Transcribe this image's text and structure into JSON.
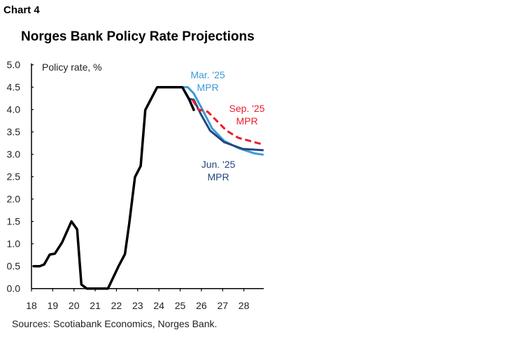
{
  "header": {
    "chart_label": "Chart 4"
  },
  "footer": {
    "sources": "Sources: Scotiabank Economics, Norges Bank."
  },
  "chart_data": {
    "type": "line",
    "title": "Norges Bank Policy Rate Projections",
    "ylabel": "Policy rate, %",
    "xlabel": "",
    "xlim": [
      18,
      29
    ],
    "ylim": [
      0,
      5
    ],
    "x_ticks": [
      18,
      19,
      20,
      21,
      22,
      23,
      24,
      25,
      26,
      27,
      28
    ],
    "y_ticks": [
      "0.0",
      "0.5",
      "1.0",
      "1.5",
      "2.0",
      "2.5",
      "3.0",
      "3.5",
      "4.0",
      "4.5",
      "5.0"
    ],
    "grid": false,
    "legend": "inline labels",
    "series": [
      {
        "name": "",
        "color": "#000000",
        "dash": false,
        "x": [
          18.07,
          18.4,
          18.6,
          18.86,
          19.1,
          19.44,
          19.88,
          20.15,
          20.35,
          20.6,
          21.6,
          22.1,
          22.4,
          22.6,
          22.87,
          23.14,
          23.36,
          23.92,
          25.1,
          25.42,
          25.66
        ],
        "y": [
          0.5,
          0.5,
          0.54,
          0.76,
          0.78,
          1.03,
          1.5,
          1.32,
          0.09,
          0.0,
          0.0,
          0.5,
          0.77,
          1.45,
          2.49,
          2.74,
          3.99,
          4.5,
          4.5,
          4.23,
          3.97
        ]
      },
      {
        "name": "Mar. '25 MPR",
        "color": "#3a9ad9",
        "dash": false,
        "x": [
          25.1,
          25.36,
          25.64,
          26.08,
          26.5,
          27.07,
          27.73,
          28.5,
          28.93
        ],
        "y": [
          4.5,
          4.5,
          4.36,
          3.97,
          3.58,
          3.3,
          3.14,
          3.02,
          2.99
        ]
      },
      {
        "name": "Jun. '25 MPR",
        "color": "#24477f",
        "dash": false,
        "x": [
          25.1,
          25.42,
          25.64,
          25.97,
          26.41,
          27.07,
          27.95,
          28.93
        ],
        "y": [
          4.5,
          4.24,
          4.22,
          3.9,
          3.53,
          3.27,
          3.12,
          3.09
        ]
      },
      {
        "name": "Sep. '25 MPR",
        "color": "#ec1c2e",
        "dash": true,
        "x": [
          25.58,
          25.86,
          26.3,
          26.74,
          27.18,
          27.73,
          28.5,
          28.83
        ],
        "y": [
          4.22,
          4.0,
          3.95,
          3.74,
          3.53,
          3.37,
          3.27,
          3.23
        ]
      }
    ],
    "annotations": [
      {
        "series": "Mar. '25 MPR",
        "lines": [
          "Mar. '25",
          "MPR"
        ]
      },
      {
        "series": "Sep. '25 MPR",
        "lines": [
          "Sep. '25",
          "MPR"
        ]
      },
      {
        "series": "Jun. '25 MPR",
        "lines": [
          "Jun. '25",
          "MPR"
        ]
      }
    ]
  }
}
